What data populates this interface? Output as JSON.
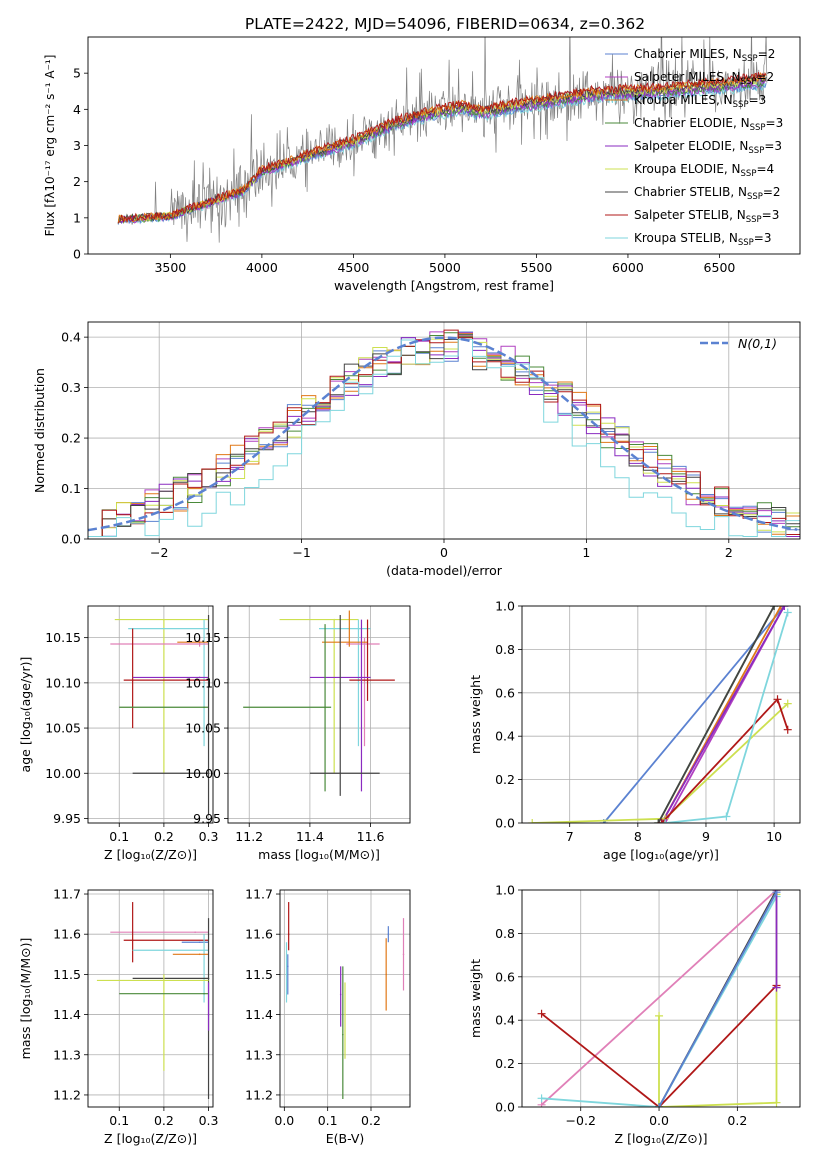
{
  "title": "PLATE=2422, MJD=54096, FIBERID=0634, z=0.362",
  "colors": {
    "chab_miles": "#5b82d1",
    "salp_miles": "#b040c0",
    "krou_miles": "#e07818",
    "chab_elodie": "#4a8a3a",
    "salp_elodie": "#8a2bc0",
    "krou_elodie": "#cde050",
    "chab_stelib": "#444444",
    "salp_stelib": "#b01818",
    "krou_stelib": "#7fd6dd",
    "pink": "#e080b8",
    "data": "#808080",
    "grid": "#b0b0b0"
  },
  "legend_spectrum": [
    {
      "key": "chab_miles",
      "label": "Chabrier MILES, N",
      "sub": "SSP",
      "tail": "=2"
    },
    {
      "key": "salp_miles",
      "label": "Salpeter MILES, N",
      "sub": "SSP",
      "tail": "=2"
    },
    {
      "key": "krou_miles",
      "label": "Kroupa MILES, N",
      "sub": "SSP",
      "tail": "=3"
    },
    {
      "key": "chab_elodie",
      "label": "Chabrier ELODIE, N",
      "sub": "SSP",
      "tail": "=3"
    },
    {
      "key": "salp_elodie",
      "label": "Salpeter ELODIE, N",
      "sub": "SSP",
      "tail": "=3"
    },
    {
      "key": "krou_elodie",
      "label": "Kroupa ELODIE, N",
      "sub": "SSP",
      "tail": "=4"
    },
    {
      "key": "chab_stelib",
      "label": "Chabrier STELIB, N",
      "sub": "SSP",
      "tail": "=2"
    },
    {
      "key": "salp_stelib",
      "label": "Salpeter STELIB, N",
      "sub": "SSP",
      "tail": "=3"
    },
    {
      "key": "krou_stelib",
      "label": "Kroupa STELIB, N",
      "sub": "SSP",
      "tail": "=3"
    }
  ],
  "chart_data": [
    {
      "id": "spectrum",
      "type": "line",
      "xlabel": "wavelength [Angstrom, rest frame]",
      "ylabel": "Flux [fλ10⁻¹⁷ erg cm⁻² s⁻¹ A⁻¹]",
      "xlim": [
        3050,
        6940
      ],
      "ylim": [
        0,
        6
      ],
      "xticks": [
        3500,
        4000,
        4500,
        5000,
        5500,
        6000,
        6500
      ],
      "yticks": [
        0,
        1,
        2,
        3,
        4,
        5
      ],
      "data_range": [
        3215,
        6760
      ],
      "model_anchor": {
        "x": [
          3215,
          3500,
          3700,
          3900,
          4000,
          4100,
          4300,
          4500,
          4700,
          4900,
          5100,
          5200,
          5400,
          5600,
          5800,
          6000,
          6200,
          6400,
          6600,
          6760
        ],
        "y": [
          0.95,
          1.05,
          1.4,
          1.75,
          2.3,
          2.45,
          2.8,
          3.1,
          3.55,
          3.85,
          4.05,
          3.9,
          4.1,
          4.25,
          4.4,
          4.45,
          4.5,
          4.6,
          4.7,
          4.8
        ]
      },
      "grid": false
    },
    {
      "id": "residual_hist",
      "type": "line",
      "xlabel": "(data-model)/error",
      "ylabel": "Normed distribution",
      "xlim": [
        -2.5,
        2.5
      ],
      "ylim": [
        0,
        0.43
      ],
      "xticks": [
        -2,
        -1,
        0,
        1,
        2
      ],
      "yticks": [
        0.0,
        0.1,
        0.2,
        0.3,
        0.4
      ],
      "reference": {
        "name": "N(0,1)",
        "mean": 0,
        "sigma": 1
      },
      "grid": true
    },
    {
      "id": "age_vs_Z",
      "type": "scatter",
      "xlabel": "Z [log₁₀(Z/Z⊙)]",
      "ylabel": "age  [log₁₀(age/yr)]",
      "xlim": [
        0.03,
        0.31
      ],
      "ylim": [
        9.945,
        10.185
      ],
      "xticks": [
        0.1,
        0.2,
        0.3
      ],
      "yticks": [
        9.95,
        10.0,
        10.05,
        10.1,
        10.15
      ],
      "points": [
        {
          "key": "krou_elodie",
          "x": 0.2,
          "y": 10.17,
          "xerr": [
            0.09,
            0.3
          ],
          "yerr": [
            10.0,
            10.17
          ]
        },
        {
          "key": "krou_stelib",
          "x": 0.29,
          "y": 10.16,
          "xerr": [
            0.12,
            0.3
          ],
          "yerr": [
            10.03,
            10.17
          ]
        },
        {
          "key": "pink",
          "x": 0.28,
          "y": 10.143,
          "xerr": [
            0.08,
            0.3
          ],
          "yerr": [
            10.14,
            10.15
          ]
        },
        {
          "key": "krou_miles",
          "x": 0.28,
          "y": 10.145,
          "xerr": [
            0.23,
            0.3
          ]
        },
        {
          "key": "salp_stelib",
          "x": 0.13,
          "y": 10.103,
          "xerr": [
            0.11,
            0.3
          ],
          "yerr": [
            10.05,
            10.16
          ]
        },
        {
          "key": "salp_elodie",
          "x": 0.28,
          "y": 10.106,
          "xerr": [
            0.13,
            0.3
          ]
        },
        {
          "key": "chab_elodie",
          "x": 0.29,
          "y": 10.073,
          "xerr": [
            0.1,
            0.3
          ]
        },
        {
          "key": "chab_stelib",
          "x": 0.3,
          "y": 10.0,
          "xerr": [
            0.13,
            0.3
          ],
          "yerr": [
            9.955,
            10.175
          ]
        }
      ]
    },
    {
      "id": "age_vs_mass",
      "type": "scatter",
      "xlabel": "mass [log₁₀(M/M⊙)]",
      "ylabel": "",
      "xlim": [
        11.13,
        11.73
      ],
      "ylim": [
        9.945,
        10.185
      ],
      "xticks": [
        11.2,
        11.4,
        11.6
      ],
      "yticks": [
        9.95,
        10.0,
        10.05,
        10.1,
        10.15
      ],
      "points": [
        {
          "key": "krou_elodie",
          "x": 11.48,
          "y": 10.17,
          "xerr": [
            11.3,
            11.56
          ],
          "yerr": [
            10.0,
            10.17
          ]
        },
        {
          "key": "krou_stelib",
          "x": 11.56,
          "y": 10.16,
          "xerr": [
            11.43,
            11.6
          ],
          "yerr": [
            10.03,
            10.17
          ]
        },
        {
          "key": "pink",
          "x": 11.58,
          "y": 10.143,
          "xerr": [
            11.52,
            11.63
          ],
          "yerr": [
            10.03,
            10.15
          ]
        },
        {
          "key": "krou_miles",
          "x": 11.53,
          "y": 10.145,
          "xerr": [
            11.44,
            11.59
          ],
          "yerr": [
            10.14,
            10.18
          ]
        },
        {
          "key": "salp_stelib",
          "x": 11.59,
          "y": 10.103,
          "xerr": [
            11.53,
            11.68
          ],
          "yerr": [
            10.08,
            10.17
          ]
        },
        {
          "key": "salp_elodie",
          "x": 11.57,
          "y": 10.106,
          "xerr": [
            11.4,
            11.6
          ],
          "yerr": [
            9.98,
            10.17
          ]
        },
        {
          "key": "chab_elodie",
          "x": 11.45,
          "y": 10.073,
          "xerr": [
            11.18,
            11.47
          ],
          "yerr": [
            9.98,
            10.165
          ]
        },
        {
          "key": "chab_stelib",
          "x": 11.5,
          "y": 10.0,
          "xerr": [
            11.4,
            11.63
          ],
          "yerr": [
            9.975,
            10.175
          ]
        }
      ]
    },
    {
      "id": "weight_vs_age",
      "type": "line",
      "xlabel": "age  [log₁₀(age/yr)]",
      "ylabel": "mass weight",
      "xlim": [
        6.3,
        10.38
      ],
      "ylim": [
        0,
        1
      ],
      "xticks": [
        7,
        8,
        9,
        10
      ],
      "yticks": [
        0.0,
        0.2,
        0.4,
        0.6,
        0.8,
        1.0
      ],
      "series": [
        {
          "key": "chab_miles",
          "x": [
            7.5,
            10.15
          ],
          "y": [
            0,
            1
          ]
        },
        {
          "key": "krou_miles",
          "x": [
            8.35,
            10.1
          ],
          "y": [
            0,
            1
          ]
        },
        {
          "key": "salp_miles",
          "x": [
            8.4,
            10.15
          ],
          "y": [
            0,
            1
          ]
        },
        {
          "key": "chab_elodie",
          "x": [
            8.3,
            10.0
          ],
          "y": [
            0,
            1
          ]
        },
        {
          "key": "salp_elodie",
          "x": [
            8.35,
            10.15
          ],
          "y": [
            0,
            1
          ]
        },
        {
          "key": "krou_elodie",
          "x": [
            6.45,
            8.4,
            10.2
          ],
          "y": [
            0,
            0.02,
            0.55
          ]
        },
        {
          "key": "chab_stelib",
          "x": [
            8.3,
            10.0
          ],
          "y": [
            0,
            1
          ]
        },
        {
          "key": "salp_stelib",
          "x": [
            8.35,
            10.05,
            10.2
          ],
          "y": [
            0,
            0.57,
            0.43
          ]
        },
        {
          "key": "krou_stelib",
          "x": [
            8.4,
            9.3,
            10.2
          ],
          "y": [
            0,
            0.03,
            0.97
          ]
        }
      ]
    },
    {
      "id": "mass_vs_Z",
      "type": "scatter",
      "xlabel": "Z [log₁₀(Z/Z⊙)]",
      "ylabel": "mass [log₁₀(M/M⊙)]",
      "xlim": [
        0.03,
        0.31
      ],
      "ylim": [
        11.17,
        11.71
      ],
      "xticks": [
        0.1,
        0.2,
        0.3
      ],
      "yticks": [
        11.2,
        11.3,
        11.4,
        11.5,
        11.6,
        11.7
      ],
      "points": [
        {
          "key": "pink",
          "x": 0.27,
          "y": 11.605,
          "xerr": [
            0.08,
            0.3
          ]
        },
        {
          "key": "salp_stelib",
          "x": 0.13,
          "y": 11.585,
          "xerr": [
            0.11,
            0.3
          ],
          "yerr": [
            11.53,
            11.68
          ]
        },
        {
          "key": "chab_miles",
          "x": 0.28,
          "y": 11.58,
          "xerr": [
            0.24,
            0.3
          ]
        },
        {
          "key": "krou_stelib",
          "x": 0.29,
          "y": 11.56,
          "xerr": [
            0.13,
            0.3
          ],
          "yerr": [
            11.43,
            11.6
          ]
        },
        {
          "key": "krou_miles",
          "x": 0.28,
          "y": 11.55,
          "xerr": [
            0.22,
            0.3
          ]
        },
        {
          "key": "chab_stelib",
          "x": 0.3,
          "y": 11.49,
          "xerr": [
            0.13,
            0.3
          ],
          "yerr": [
            11.19,
            11.64
          ]
        },
        {
          "key": "krou_elodie",
          "x": 0.2,
          "y": 11.485,
          "xerr": [
            0.05,
            0.3
          ],
          "yerr": [
            11.26,
            11.5
          ]
        },
        {
          "key": "chab_elodie",
          "x": 0.29,
          "y": 11.452,
          "xerr": [
            0.1,
            0.3
          ]
        },
        {
          "key": "salp_elodie",
          "x": 0.3,
          "y": 11.4,
          "yerr": [
            11.36,
            11.48
          ]
        }
      ]
    },
    {
      "id": "mass_vs_ebv",
      "type": "scatter",
      "xlabel": "E(B-V)",
      "ylabel": "",
      "xlim": [
        -0.01,
        0.29
      ],
      "ylim": [
        11.17,
        11.71
      ],
      "xticks": [
        0.0,
        0.1,
        0.2
      ],
      "yticks": [
        11.2,
        11.3,
        11.4,
        11.5,
        11.6,
        11.7
      ],
      "points": [
        {
          "key": "salp_stelib",
          "x": 0.01,
          "y": 11.6,
          "yerr": [
            11.56,
            11.68
          ]
        },
        {
          "key": "krou_stelib",
          "x": 0.005,
          "y": 11.5,
          "yerr": [
            11.43,
            11.58
          ]
        },
        {
          "key": "chab_miles",
          "x": 0.008,
          "y": 11.52,
          "yerr": [
            11.45,
            11.55
          ]
        },
        {
          "key": "salp_elodie",
          "x": 0.13,
          "y": 11.45,
          "yerr": [
            11.37,
            11.52
          ]
        },
        {
          "key": "chab_elodie",
          "x": 0.135,
          "y": 11.35,
          "yerr": [
            11.19,
            11.52
          ]
        },
        {
          "key": "krou_elodie",
          "x": 0.14,
          "y": 11.4,
          "yerr": [
            11.29,
            11.48
          ]
        },
        {
          "key": "krou_miles",
          "x": 0.235,
          "y": 11.5,
          "yerr": [
            11.41,
            11.59
          ]
        },
        {
          "key": "chab_miles",
          "x": 0.24,
          "y": 11.6,
          "yerr": [
            11.58,
            11.62
          ]
        },
        {
          "key": "pink",
          "x": 0.275,
          "y": 11.55,
          "yerr": [
            11.46,
            11.64
          ]
        }
      ]
    },
    {
      "id": "weight_vs_Z",
      "type": "line",
      "xlabel": "Z [log₁₀(Z/Z⊙)]",
      "ylabel": "mass weight",
      "xlim": [
        -0.35,
        0.36
      ],
      "ylim": [
        0,
        1
      ],
      "xticks": [
        -0.2,
        0.0,
        0.2
      ],
      "yticks": [
        0.0,
        0.2,
        0.4,
        0.6,
        0.8,
        1.0
      ],
      "series": [
        {
          "key": "pink",
          "x": [
            -0.3,
            0.3
          ],
          "y": [
            0.01,
            1.0
          ]
        },
        {
          "key": "salp_stelib",
          "x": [
            -0.3,
            0.0,
            0.3
          ],
          "y": [
            0.43,
            0.0,
            0.56
          ]
        },
        {
          "key": "krou_stelib",
          "x": [
            -0.3,
            0.0,
            0.3
          ],
          "y": [
            0.04,
            0.0,
            0.97
          ]
        },
        {
          "key": "krou_elodie",
          "x": [
            0.0,
            0.0,
            0.3,
            0.3
          ],
          "y": [
            0.42,
            0.0,
            0.02,
            0.98
          ]
        },
        {
          "key": "chab_stelib",
          "x": [
            0.0,
            0.3
          ],
          "y": [
            0.0,
            1.0
          ]
        },
        {
          "key": "salp_elodie",
          "x": [
            0.3,
            0.3
          ],
          "y": [
            0.55,
            1.0
          ]
        },
        {
          "key": "chab_miles",
          "x": [
            0.0,
            0.3
          ],
          "y": [
            0.0,
            0.99
          ]
        }
      ]
    }
  ]
}
